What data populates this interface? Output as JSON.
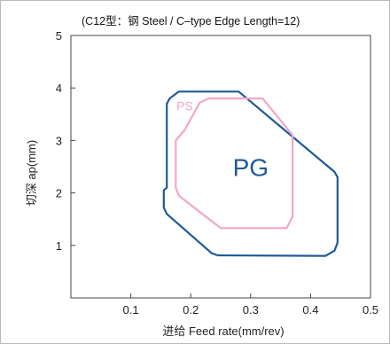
{
  "chart_data": {
    "type": "area",
    "title": "(C12型：钢 Steel / C–type Edge Length=12)",
    "xlabel": "进给 Feed rate(mm/rev)",
    "ylabel": "切深 ap(mm)",
    "xlim": [
      0.0,
      0.5
    ],
    "ylim": [
      0.0,
      5.0
    ],
    "xticks": [
      0.1,
      0.2,
      0.3,
      0.4,
      0.5
    ],
    "xtick_labels": [
      "0.1",
      "0.2",
      "0.3",
      "0.4",
      "0.5"
    ],
    "yticks": [
      1,
      2,
      3,
      4,
      5
    ],
    "ytick_labels": [
      "1",
      "2",
      "3",
      "4",
      "5"
    ],
    "grid": false,
    "series": [
      {
        "name": "PG",
        "color": "#1f5a96",
        "points": [
          [
            0.18,
            3.93
          ],
          [
            0.28,
            3.93
          ],
          [
            0.44,
            2.4
          ],
          [
            0.445,
            2.3
          ],
          [
            0.445,
            1.05
          ],
          [
            0.44,
            0.9
          ],
          [
            0.425,
            0.8
          ],
          [
            0.245,
            0.81
          ],
          [
            0.235,
            0.85
          ],
          [
            0.16,
            1.6
          ],
          [
            0.155,
            1.72
          ],
          [
            0.155,
            2.05
          ],
          [
            0.16,
            2.1
          ],
          [
            0.16,
            3.7
          ],
          [
            0.165,
            3.8
          ]
        ]
      },
      {
        "name": "PS",
        "color": "#f2a7c7",
        "points": [
          [
            0.215,
            3.72
          ],
          [
            0.23,
            3.8
          ],
          [
            0.32,
            3.8
          ],
          [
            0.37,
            3.1
          ],
          [
            0.37,
            1.55
          ],
          [
            0.36,
            1.33
          ],
          [
            0.25,
            1.33
          ],
          [
            0.18,
            1.95
          ],
          [
            0.175,
            2.1
          ],
          [
            0.175,
            3.0
          ],
          [
            0.19,
            3.2
          ]
        ]
      }
    ]
  }
}
